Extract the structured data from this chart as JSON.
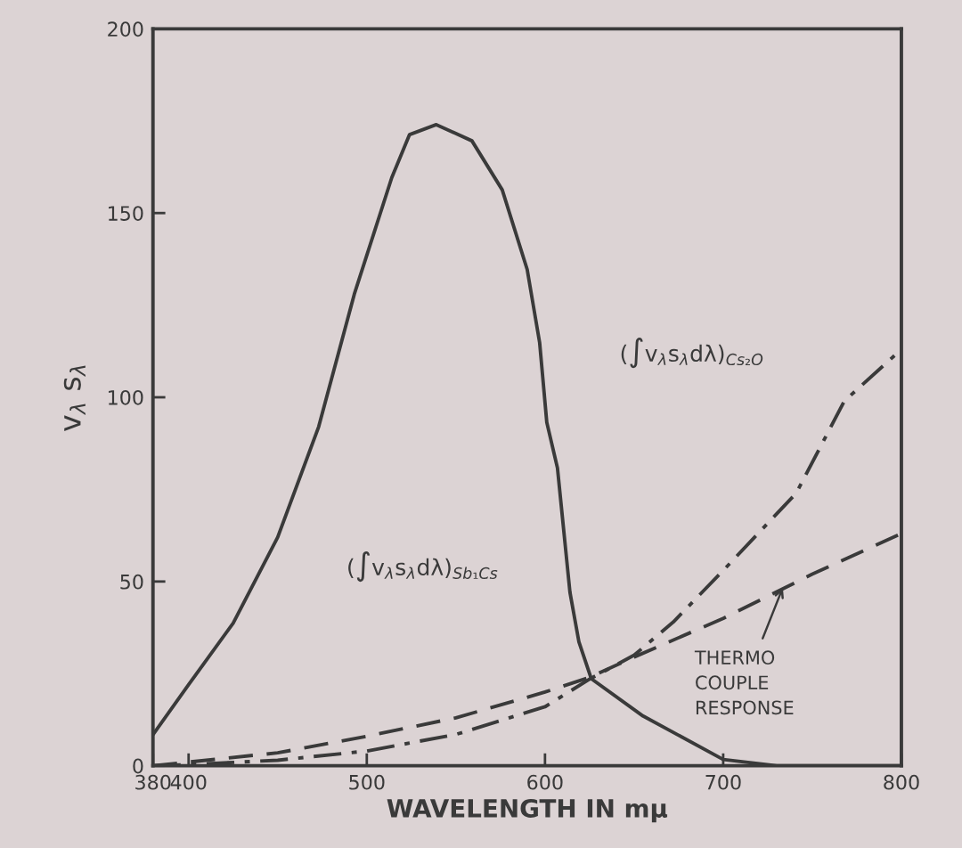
{
  "chart_data": {
    "type": "line",
    "xlabel": "WAVELENGTH IN mμ",
    "ylabel": "v$_{λ}$ s$_{λ}$",
    "xlim": [
      380,
      800
    ],
    "ylim": [
      0,
      200
    ],
    "xticks": [
      380,
      400,
      500,
      600,
      700,
      800
    ],
    "yticks": [
      0,
      50,
      100,
      150,
      200
    ],
    "grid": false,
    "legend": false,
    "marker": "none",
    "series": [
      {
        "color": "#3a3a3a",
        "line_style": "solid",
        "x": [
          380,
          400,
          425,
          450,
          473,
          493,
          514,
          524,
          539,
          559,
          576,
          590,
          597,
          601,
          607,
          614,
          619,
          626,
          655,
          700,
          730,
          800
        ],
        "values": [
          8.4,
          22,
          38.7,
          62,
          92,
          128,
          159.6,
          171.3,
          174,
          169.6,
          156.3,
          134.7,
          114.8,
          93.2,
          80.8,
          47.1,
          33.7,
          23.6,
          13.5,
          1.7,
          0,
          0
        ]
      },
      {
        "color": "#3a3a3a",
        "line_style": "dashdot",
        "x": [
          380,
          400,
          450,
          500,
          550,
          600,
          625,
          650,
          672,
          700,
          741,
          768,
          800
        ],
        "values": [
          0,
          0.3,
          1.5,
          4,
          8.5,
          16,
          23.5,
          30,
          39,
          53,
          74,
          99,
          113
        ]
      },
      {
        "color": "#3a3a3a",
        "line_style": "dashed",
        "x": [
          380,
          400,
          450,
          500,
          550,
          600,
          625,
          650,
          700,
          750,
          800
        ],
        "values": [
          0,
          1,
          3.5,
          8,
          13,
          20,
          24,
          29.5,
          40,
          52,
          63
        ]
      }
    ],
    "annotations": [
      "(∫v$_{λ}$s$_{λ}$dλ)$_{Sb₁Cs}$",
      "(∫v$_{λ}$s$_{λ}$dλ)$_{Cs₂O}$",
      {
        "text": "THERMO\nCOUPLE\nRESPONSE",
        "x": 734,
        "y": 49
      }
    ]
  }
}
